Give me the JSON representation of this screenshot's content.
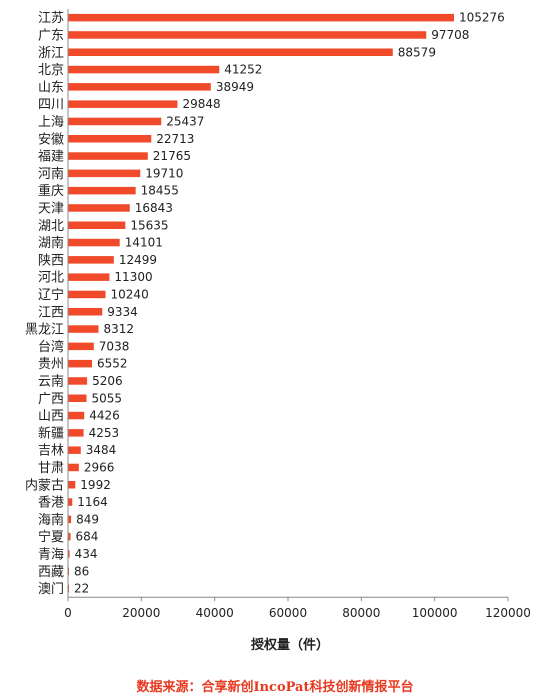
{
  "chart_data": {
    "type": "bar",
    "orientation": "horizontal",
    "categories": [
      "江苏",
      "广东",
      "浙江",
      "北京",
      "山东",
      "四川",
      "上海",
      "安徽",
      "福建",
      "河南",
      "重庆",
      "天津",
      "湖北",
      "湖南",
      "陕西",
      "河北",
      "辽宁",
      "江西",
      "黑龙江",
      "台湾",
      "贵州",
      "云南",
      "广西",
      "山西",
      "新疆",
      "吉林",
      "甘肃",
      "内蒙古",
      "香港",
      "海南",
      "宁夏",
      "青海",
      "西藏",
      "澳门"
    ],
    "values": [
      105276,
      97708,
      88579,
      41252,
      38949,
      29848,
      25437,
      22713,
      21765,
      19710,
      18455,
      16843,
      15635,
      14101,
      12499,
      11300,
      10240,
      9334,
      8312,
      7038,
      6552,
      5206,
      5055,
      4426,
      4253,
      3484,
      2966,
      1992,
      1164,
      849,
      684,
      434,
      86,
      22
    ],
    "xlabel": "授权量（件）",
    "xlim": [
      0,
      120000
    ],
    "xticks": [
      0,
      20000,
      40000,
      60000,
      80000,
      100000,
      120000
    ],
    "bar_color": "#f04a2a",
    "grid": false,
    "legend": "none"
  },
  "source_note": "数据来源：合享新创IncoPat科技创新情报平台"
}
